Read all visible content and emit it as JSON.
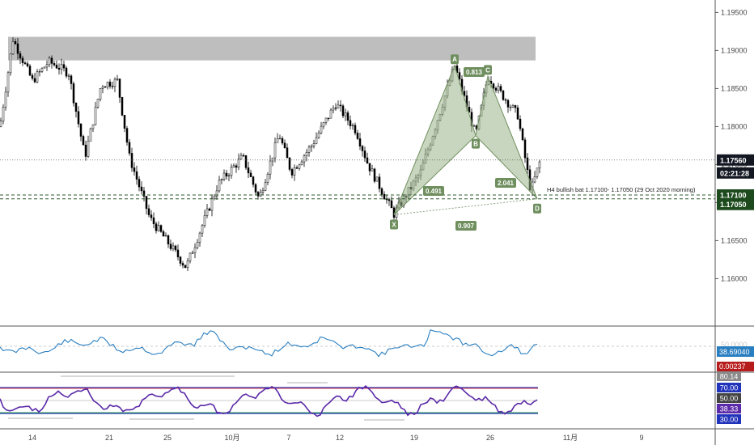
{
  "chart_data": {
    "type": "candlestick",
    "main_panel": {
      "ylim": [
        1.156,
        1.196
      ],
      "price_ticks": [
        "1.19500",
        "1.19000",
        "1.18500",
        "1.18000",
        "1.17500",
        "1.17000",
        "1.16500",
        "1.16000"
      ],
      "current_price": "1.17560",
      "countdown": "02:21:28",
      "level_1": "1.17100",
      "level_2": "1.17050",
      "supply_zone": [
        1.1887,
        1.1918
      ],
      "pattern_note": "H4 bullish bat 1.17100- 1.17050 (29 Oct 2020 morning)",
      "harmonic_points": [
        {
          "label": "X",
          "date_index": 17.3,
          "price": 1.1684
        },
        {
          "label": "A",
          "date_index": 22.3,
          "price": 1.188
        },
        {
          "label": "B",
          "date_index": 24.1,
          "price": 1.1788
        },
        {
          "label": "C",
          "date_index": 25.6,
          "price": 1.1866
        },
        {
          "label": "D",
          "date_index": 28.9,
          "price": 1.1705
        }
      ],
      "ratios": [
        "0.813",
        "0.491",
        "2.041",
        "0.907"
      ],
      "colors": {
        "pattern_fill": "#9bb58a",
        "label_bg": "#6f8f5f",
        "level_bg": "#1c4a1c",
        "price_bg": "#131722"
      }
    },
    "dates": [
      "14",
      "21",
      "25",
      "10月",
      "7",
      "12",
      "19",
      "26",
      "11月",
      "9"
    ],
    "oscillator_1": {
      "value": "38.69040",
      "sub_value": "0.00237",
      "hidden_label": "50.0000",
      "colors": {
        "line": "#2a7fc1",
        "value_bg": "#2a7fc1",
        "sub_bg": "#b71c1c"
      }
    },
    "oscillator_2": {
      "values": [
        "80.14",
        "70.00",
        "50.00",
        "38.33",
        "30.00"
      ],
      "colors": {
        "line": "#5b2aa8",
        "upper": "#2233bb",
        "mid": "#bbbbbb",
        "red": "#e04040",
        "green": "#30a050"
      }
    }
  }
}
